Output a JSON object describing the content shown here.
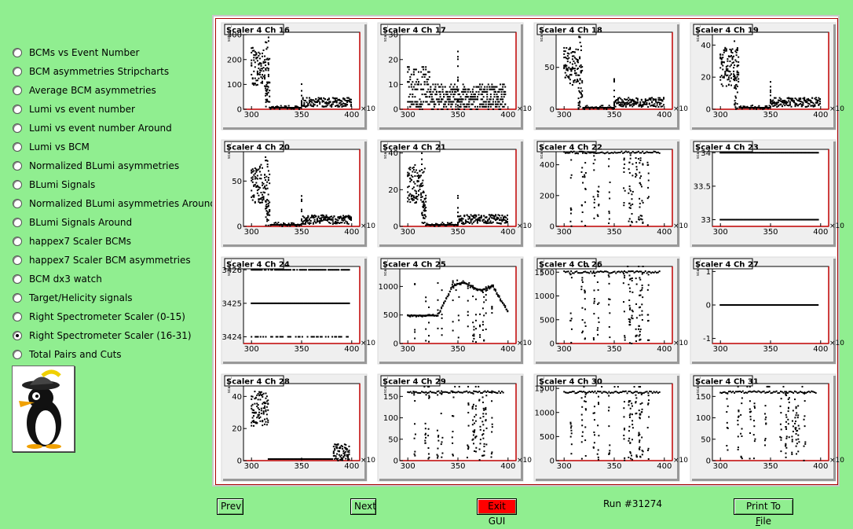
{
  "sidebar": {
    "items": [
      {
        "label": "BCMs vs Event Number",
        "checked": false
      },
      {
        "label": "BCM asymmetries Stripcharts",
        "checked": false
      },
      {
        "label": "Average BCM asymmetries",
        "checked": false
      },
      {
        "label": "Lumi vs event number",
        "checked": false
      },
      {
        "label": "Lumi vs event number Around",
        "checked": false
      },
      {
        "label": "Lumi vs BCM",
        "checked": false
      },
      {
        "label": "Normalized BLumi asymmetries",
        "checked": false
      },
      {
        "label": "BLumi Signals",
        "checked": false
      },
      {
        "label": "Normalized BLumi asymmetries Around",
        "checked": false
      },
      {
        "label": "BLumi Signals Around",
        "checked": false
      },
      {
        "label": "happex7 Scaler BCMs",
        "checked": false
      },
      {
        "label": "happex7 Scaler BCM asymmetries",
        "checked": false
      },
      {
        "label": "BCM dx3 watch",
        "checked": false
      },
      {
        "label": "Target/Helicity signals",
        "checked": false
      },
      {
        "label": "Right Spectrometer Scaler (0-15)",
        "checked": false
      },
      {
        "label": "Right Spectrometer Scaler (16-31)",
        "checked": true
      },
      {
        "label": "Total Pairs and Cuts",
        "checked": false
      }
    ]
  },
  "logo_icon": "penguin-mascot-icon",
  "footer": {
    "prev": "Prev",
    "next": "Next",
    "exit": "Exit GUI",
    "run": "Run #31274",
    "print_pre": "Print To ",
    "print_u": "F",
    "print_post": "ile"
  },
  "colors": {
    "background": "#90ee90",
    "frame_border": "#aa0000",
    "exit_button": "#ff0000"
  },
  "chart_data": [
    {
      "type": "scatter",
      "title": "Scaler 4 Ch 16",
      "ylabel": "scaler4_",
      "xlabel": "×10",
      "xlim": [
        292,
        408
      ],
      "ylim": [
        0,
        310
      ],
      "xticks": [
        "300",
        "350",
        "400"
      ],
      "yticks": [
        "0",
        "100",
        "200",
        "300"
      ],
      "pattern": "spike"
    },
    {
      "type": "scatter",
      "title": "Scaler 4 Ch 17",
      "ylabel": "scaler4_",
      "xlabel": "×10",
      "xlim": [
        292,
        408
      ],
      "ylim": [
        0,
        31
      ],
      "xticks": [
        "300",
        "350",
        "400"
      ],
      "yticks": [
        "0",
        "10",
        "20",
        "30"
      ],
      "pattern": "noise"
    },
    {
      "type": "scatter",
      "title": "Scaler 4 Ch 18",
      "ylabel": "scaler4_",
      "xlabel": "×10",
      "xlim": [
        292,
        408
      ],
      "ylim": [
        0,
        92
      ],
      "xticks": [
        "300",
        "350",
        "400"
      ],
      "yticks": [
        "0",
        "50"
      ],
      "pattern": "spike"
    },
    {
      "type": "scatter",
      "title": "Scaler 4 Ch 19",
      "ylabel": "scaler4_",
      "xlabel": "×10",
      "xlim": [
        292,
        408
      ],
      "ylim": [
        0,
        48
      ],
      "xticks": [
        "300",
        "350",
        "400"
      ],
      "yticks": [
        "0",
        "20",
        "40"
      ],
      "pattern": "spike"
    },
    {
      "type": "scatter",
      "title": "Scaler 4 Ch 20",
      "ylabel": "scaler4_",
      "xlabel": "×10",
      "xlim": [
        292,
        408
      ],
      "ylim": [
        0,
        85
      ],
      "xticks": [
        "300",
        "350",
        "400"
      ],
      "yticks": [
        "0",
        "50"
      ],
      "pattern": "spike"
    },
    {
      "type": "scatter",
      "title": "Scaler 4 Ch 21",
      "ylabel": "scaler4_",
      "xlabel": "×10",
      "xlim": [
        292,
        408
      ],
      "ylim": [
        0,
        42
      ],
      "xticks": [
        "300",
        "350",
        "400"
      ],
      "yticks": [
        "0",
        "20",
        "40"
      ],
      "pattern": "spike"
    },
    {
      "type": "scatter",
      "title": "Scaler 4 Ch 22",
      "ylabel": "scaler4_",
      "xlabel": "×10",
      "xlim": [
        292,
        408
      ],
      "ylim": [
        0,
        500
      ],
      "xticks": [
        "300",
        "350",
        "400"
      ],
      "yticks": [
        "0",
        "200",
        "400"
      ],
      "pattern": "flatdrop",
      "level": 480
    },
    {
      "type": "scatter",
      "title": "Scaler 4 Ch 23",
      "ylabel": "scaler4_",
      "xlabel": "×10",
      "xlim": [
        292,
        408
      ],
      "ylim": [
        32.9,
        34.05
      ],
      "xticks": [
        "300",
        "350",
        "400"
      ],
      "yticks": [
        "33",
        "33.5",
        "34"
      ],
      "pattern": "twolines",
      "levels": [
        34,
        33
      ]
    },
    {
      "type": "scatter",
      "title": "Scaler 4 Ch 24",
      "ylabel": "scaler4_",
      "xlabel": "×10",
      "xlim": [
        292,
        408
      ],
      "ylim": [
        3423.8,
        3426.1
      ],
      "xticks": [
        "300",
        "350",
        "400"
      ],
      "yticks": [
        "3424",
        "3425",
        "3426"
      ],
      "pattern": "threelines",
      "levels": [
        3426,
        3425,
        3424
      ]
    },
    {
      "type": "scatter",
      "title": "Scaler 4 Ch 25",
      "ylabel": "scaler4_",
      "xlabel": "×10",
      "xlim": [
        292,
        408
      ],
      "ylim": [
        0,
        1350
      ],
      "xticks": [
        "300",
        "350",
        "400"
      ],
      "yticks": [
        "0",
        "500",
        "1000"
      ],
      "pattern": "hump"
    },
    {
      "type": "scatter",
      "title": "Scaler 4 Ch 26",
      "ylabel": "scaler4_",
      "xlabel": "×10",
      "xlim": [
        292,
        408
      ],
      "ylim": [
        0,
        1620
      ],
      "xticks": [
        "300",
        "350",
        "400"
      ],
      "yticks": [
        "0",
        "500",
        "1000",
        "1500"
      ],
      "pattern": "flatdrop",
      "level": 1500
    },
    {
      "type": "scatter",
      "title": "Scaler 4 Ch 27",
      "ylabel": "scaler4_",
      "xlabel": "×10",
      "xlim": [
        292,
        408
      ],
      "ylim": [
        -1.15,
        1.15
      ],
      "xticks": [
        "300",
        "350",
        "400"
      ],
      "yticks": [
        "-1",
        "0",
        "1"
      ],
      "pattern": "zero"
    },
    {
      "type": "scatter",
      "title": "Scaler 4 Ch 28",
      "ylabel": "scaler4_",
      "xlabel": "×10",
      "xlim": [
        292,
        408
      ],
      "ylim": [
        0,
        48
      ],
      "xticks": [
        "300",
        "350",
        "400"
      ],
      "yticks": [
        "0",
        "20",
        "40"
      ],
      "pattern": "spikeend"
    },
    {
      "type": "scatter",
      "title": "Scaler 4 Ch 29",
      "ylabel": "scaler4_",
      "xlabel": "×10",
      "xlim": [
        292,
        408
      ],
      "ylim": [
        0,
        180
      ],
      "xticks": [
        "300",
        "350",
        "400"
      ],
      "yticks": [
        "0",
        "50",
        "100",
        "150"
      ],
      "pattern": "flatdrop",
      "level": 160
    },
    {
      "type": "scatter",
      "title": "Scaler 4 Ch 30",
      "ylabel": "scaler4_",
      "xlabel": "×10",
      "xlim": [
        292,
        408
      ],
      "ylim": [
        0,
        1600
      ],
      "xticks": [
        "300",
        "350",
        "400"
      ],
      "yticks": [
        "0",
        "500",
        "1000",
        "1500"
      ],
      "pattern": "flatdrop",
      "level": 1420
    },
    {
      "type": "scatter",
      "title": "Scaler 4 Ch 31",
      "ylabel": "scaler4_",
      "xlabel": "×10",
      "xlim": [
        292,
        408
      ],
      "ylim": [
        0,
        180
      ],
      "xticks": [
        "300",
        "350",
        "400"
      ],
      "yticks": [
        "0",
        "50",
        "100",
        "150"
      ],
      "pattern": "flatdrop",
      "level": 160
    }
  ]
}
